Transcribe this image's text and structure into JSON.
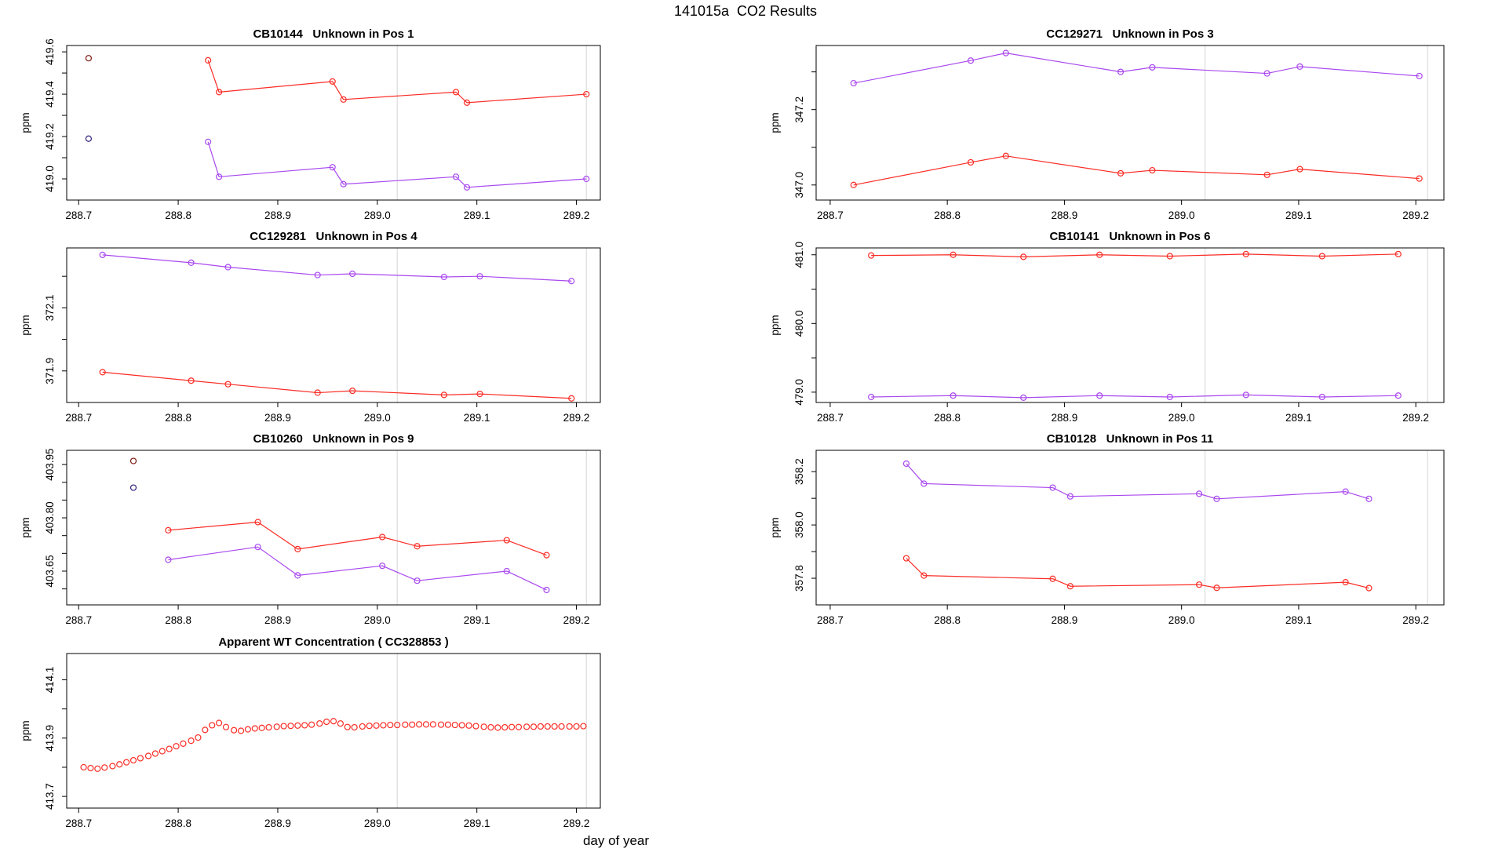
{
  "page": {
    "title": "141015a  CO2 Results",
    "xlabel": "day of year"
  },
  "colors": {
    "red": "#fa2c25",
    "purple": "#a948ef",
    "dark_red": "#7c1a10",
    "dark_purple": "#2f2380",
    "grid": "#dcdcdc",
    "axis": "#000000"
  },
  "chart_data": [
    {
      "type": "line",
      "title": "CB10144   Unknown in Pos 1",
      "ylabel": "ppm",
      "xlim": [
        288.688,
        289.224
      ],
      "ylim": [
        418.9,
        419.63
      ],
      "xticks": {
        "values": [
          288.7,
          288.8,
          288.9,
          289.0,
          289.1,
          289.2
        ],
        "labels": [
          "288.7",
          "288.8",
          "288.9",
          "289.0",
          "289.1",
          "289.2"
        ]
      },
      "yticks": {
        "values": [
          419.0,
          419.1,
          419.2,
          419.3,
          419.4,
          419.5,
          419.6
        ],
        "labels": [
          "419.0",
          "",
          "419.2",
          "",
          "419.4",
          "",
          "419.6"
        ]
      },
      "vlines": [
        289.02,
        289.21
      ],
      "grid": "vlines-only",
      "legend": "none",
      "series": [
        {
          "name": "red-series",
          "color": "red",
          "draw_line": true,
          "line_from": 1,
          "first_point_color": "dark_red",
          "x": [
            288.71,
            288.83,
            288.841,
            288.955,
            288.966,
            289.079,
            289.09,
            289.21
          ],
          "y": [
            419.57,
            419.56,
            419.41,
            419.46,
            419.375,
            419.41,
            419.36,
            419.4
          ]
        },
        {
          "name": "purple-series",
          "color": "purple",
          "draw_line": true,
          "line_from": 1,
          "first_point_color": "dark_purple",
          "x": [
            288.71,
            288.83,
            288.841,
            288.955,
            288.966,
            289.079,
            289.09,
            289.21
          ],
          "y": [
            419.19,
            419.175,
            419.01,
            419.055,
            418.975,
            419.01,
            418.96,
            419.0
          ]
        }
      ]
    },
    {
      "type": "line",
      "title": "CC129271   Unknown in Pos 3",
      "ylabel": "ppm",
      "xlim": [
        288.688,
        289.224
      ],
      "ylim": [
        346.96,
        347.37
      ],
      "xticks": {
        "values": [
          288.7,
          288.8,
          288.9,
          289.0,
          289.1,
          289.2
        ],
        "labels": [
          "288.7",
          "288.8",
          "288.9",
          "289.0",
          "289.1",
          "289.2"
        ]
      },
      "yticks": {
        "values": [
          347.0,
          347.1,
          347.2,
          347.3
        ],
        "labels": [
          "347.0",
          "",
          "347.2",
          ""
        ]
      },
      "vlines": [
        289.02,
        289.21
      ],
      "grid": "vlines-only",
      "legend": "none",
      "series": [
        {
          "name": "purple-series",
          "color": "purple",
          "draw_line": true,
          "x": [
            288.72,
            288.82,
            288.85,
            288.948,
            288.975,
            289.073,
            289.101,
            289.203
          ],
          "y": [
            347.27,
            347.33,
            347.35,
            347.3,
            347.312,
            347.296,
            347.314,
            347.289
          ]
        },
        {
          "name": "red-series",
          "color": "red",
          "draw_line": true,
          "x": [
            288.72,
            288.82,
            288.85,
            288.948,
            288.975,
            289.073,
            289.101,
            289.203
          ],
          "y": [
            347.0,
            347.06,
            347.077,
            347.031,
            347.039,
            347.027,
            347.042,
            347.017
          ]
        }
      ]
    },
    {
      "type": "line",
      "title": "CC129281   Unknown in Pos 4",
      "ylabel": "ppm",
      "xlim": [
        288.688,
        289.224
      ],
      "ylim": [
        371.8,
        372.29
      ],
      "xticks": {
        "values": [
          288.7,
          288.8,
          288.9,
          289.0,
          289.1,
          289.2
        ],
        "labels": [
          "288.7",
          "288.8",
          "288.9",
          "289.0",
          "289.1",
          "289.2"
        ]
      },
      "yticks": {
        "values": [
          371.9,
          372.0,
          372.1,
          372.2
        ],
        "labels": [
          "371.9",
          "",
          "372.1",
          ""
        ]
      },
      "vlines": [
        289.02,
        289.21
      ],
      "grid": "vlines-only",
      "legend": "none",
      "series": [
        {
          "name": "purple-series",
          "color": "purple",
          "draw_line": true,
          "x": [
            288.724,
            288.813,
            288.85,
            288.94,
            288.975,
            289.067,
            289.103,
            289.195
          ],
          "y": [
            372.268,
            372.243,
            372.229,
            372.204,
            372.208,
            372.198,
            372.2,
            372.185
          ]
        },
        {
          "name": "red-series",
          "color": "red",
          "draw_line": true,
          "x": [
            288.724,
            288.813,
            288.85,
            288.94,
            288.975,
            289.067,
            289.103,
            289.195
          ],
          "y": [
            371.896,
            371.869,
            371.858,
            371.831,
            371.837,
            371.824,
            371.827,
            371.813
          ]
        }
      ]
    },
    {
      "type": "line",
      "title": "CB10141   Unknown in Pos 6",
      "ylabel": "ppm",
      "xlim": [
        288.688,
        289.224
      ],
      "ylim": [
        478.85,
        481.1
      ],
      "xticks": {
        "values": [
          288.7,
          288.8,
          288.9,
          289.0,
          289.1,
          289.2
        ],
        "labels": [
          "288.7",
          "288.8",
          "288.9",
          "289.0",
          "289.1",
          "289.2"
        ]
      },
      "yticks": {
        "values": [
          479.0,
          479.5,
          480.0,
          480.5,
          481.0
        ],
        "labels": [
          "479.0",
          "",
          "480.0",
          "",
          "481.0"
        ]
      },
      "vlines": [
        289.02,
        289.21
      ],
      "grid": "vlines-only",
      "legend": "none",
      "series": [
        {
          "name": "red-series",
          "color": "red",
          "draw_line": true,
          "x": [
            288.735,
            288.805,
            288.865,
            288.93,
            288.99,
            289.055,
            289.12,
            289.185
          ],
          "y": [
            480.99,
            481.0,
            480.97,
            481.0,
            480.98,
            481.01,
            480.98,
            481.01
          ]
        },
        {
          "name": "purple-series",
          "color": "purple",
          "draw_line": true,
          "x": [
            288.735,
            288.805,
            288.865,
            288.93,
            288.99,
            289.055,
            289.12,
            289.185
          ],
          "y": [
            478.93,
            478.95,
            478.92,
            478.95,
            478.93,
            478.96,
            478.93,
            478.95
          ]
        }
      ]
    },
    {
      "type": "line",
      "title": "CB10260   Unknown in Pos 9",
      "ylabel": "ppm",
      "xlim": [
        288.688,
        289.224
      ],
      "ylim": [
        403.555,
        403.99
      ],
      "xticks": {
        "values": [
          288.7,
          288.8,
          288.9,
          289.0,
          289.1,
          289.2
        ],
        "labels": [
          "288.7",
          "288.8",
          "288.9",
          "289.0",
          "289.1",
          "289.2"
        ]
      },
      "yticks": {
        "values": [
          403.6,
          403.65,
          403.7,
          403.75,
          403.8,
          403.85,
          403.9,
          403.95
        ],
        "labels": [
          "",
          "403.65",
          "",
          "",
          "403.80",
          "",
          "",
          "403.95"
        ]
      },
      "vlines": [
        289.02,
        289.21
      ],
      "grid": "vlines-only",
      "legend": "none",
      "series": [
        {
          "name": "red-series",
          "color": "red",
          "draw_line": true,
          "line_from": 1,
          "first_point_color": "dark_red",
          "x": [
            288.755,
            288.79,
            288.88,
            288.92,
            289.005,
            289.04,
            289.13,
            289.17
          ],
          "y": [
            403.96,
            403.765,
            403.788,
            403.712,
            403.746,
            403.72,
            403.737,
            403.695
          ]
        },
        {
          "name": "purple-series",
          "color": "purple",
          "draw_line": true,
          "line_from": 1,
          "first_point_color": "dark_purple",
          "x": [
            288.755,
            288.79,
            288.88,
            288.92,
            289.005,
            289.04,
            289.13,
            289.17
          ],
          "y": [
            403.885,
            403.682,
            403.718,
            403.638,
            403.665,
            403.623,
            403.65,
            403.597
          ]
        }
      ]
    },
    {
      "type": "line",
      "title": "CB10128   Unknown in Pos 11",
      "ylabel": "ppm",
      "xlim": [
        288.688,
        289.224
      ],
      "ylim": [
        357.7,
        358.28
      ],
      "xticks": {
        "values": [
          288.7,
          288.8,
          288.9,
          289.0,
          289.1,
          289.2
        ],
        "labels": [
          "288.7",
          "288.8",
          "288.9",
          "289.0",
          "289.1",
          "289.2"
        ]
      },
      "yticks": {
        "values": [
          357.8,
          357.9,
          358.0,
          358.1,
          358.2
        ],
        "labels": [
          "357.8",
          "",
          "358.0",
          "",
          "358.2"
        ]
      },
      "vlines": [
        289.02,
        289.21
      ],
      "grid": "vlines-only",
      "legend": "none",
      "series": [
        {
          "name": "purple-series",
          "color": "purple",
          "draw_line": true,
          "x": [
            288.765,
            288.78,
            288.89,
            288.905,
            289.015,
            289.03,
            289.14,
            289.16
          ],
          "y": [
            358.23,
            358.155,
            358.14,
            358.107,
            358.117,
            358.098,
            358.125,
            358.098
          ]
        },
        {
          "name": "red-series",
          "color": "red",
          "draw_line": true,
          "x": [
            288.765,
            288.78,
            288.89,
            288.905,
            289.015,
            289.03,
            289.14,
            289.16
          ],
          "y": [
            357.875,
            357.81,
            357.798,
            357.77,
            357.776,
            357.764,
            357.785,
            357.763
          ]
        }
      ]
    },
    {
      "type": "scatter",
      "title": "Apparent WT Concentration ( CC328853 )",
      "ylabel": "ppm",
      "xlim": [
        288.688,
        289.224
      ],
      "ylim": [
        413.66,
        414.19
      ],
      "xticks": {
        "values": [
          288.7,
          288.8,
          288.9,
          289.0,
          289.1,
          289.2
        ],
        "labels": [
          "288.7",
          "288.8",
          "288.9",
          "289.0",
          "289.1",
          "289.2"
        ]
      },
      "yticks": {
        "values": [
          413.7,
          413.8,
          413.9,
          414.0,
          414.1
        ],
        "labels": [
          "413.7",
          "",
          "413.9",
          "",
          "414.1"
        ]
      },
      "vlines": [
        289.02,
        289.21
      ],
      "grid": "vlines-only",
      "legend": "none",
      "series": [
        {
          "name": "red-series",
          "color": "red",
          "draw_line": false,
          "x": [
            288.705,
            288.712,
            288.719,
            288.726,
            288.734,
            288.741,
            288.748,
            288.755,
            288.762,
            288.77,
            288.777,
            288.784,
            288.791,
            288.798,
            288.805,
            288.813,
            288.82,
            288.827,
            288.834,
            288.841,
            288.848,
            288.856,
            288.863,
            288.87,
            288.877,
            288.884,
            288.891,
            288.899,
            288.906,
            288.913,
            288.92,
            288.927,
            288.934,
            288.942,
            288.949,
            288.956,
            288.963,
            288.97,
            288.977,
            288.985,
            288.992,
            288.999,
            289.006,
            289.013,
            289.02,
            289.028,
            289.035,
            289.042,
            289.049,
            289.056,
            289.064,
            289.071,
            289.078,
            289.085,
            289.092,
            289.099,
            289.107,
            289.114,
            289.121,
            289.128,
            289.135,
            289.142,
            289.15,
            289.157,
            289.164,
            289.171,
            289.178,
            289.185,
            289.193,
            289.2,
            289.207
          ],
          "y": [
            413.8,
            413.797,
            413.795,
            413.799,
            413.804,
            413.81,
            413.817,
            413.824,
            413.831,
            413.839,
            413.847,
            413.855,
            413.863,
            413.872,
            413.881,
            413.891,
            413.902,
            413.928,
            413.944,
            413.952,
            413.938,
            413.927,
            413.925,
            413.93,
            413.933,
            413.935,
            413.937,
            413.939,
            413.941,
            413.942,
            413.943,
            413.944,
            413.946,
            413.95,
            413.956,
            413.958,
            413.95,
            413.938,
            413.937,
            413.94,
            413.942,
            413.943,
            413.944,
            413.945,
            413.945,
            413.946,
            413.946,
            413.947,
            413.947,
            413.947,
            413.946,
            413.946,
            413.945,
            413.944,
            413.943,
            413.941,
            413.939,
            413.937,
            413.936,
            413.937,
            413.938,
            413.938,
            413.939,
            413.939,
            413.94,
            413.94,
            413.94,
            413.94,
            413.94,
            413.94,
            413.941
          ]
        }
      ]
    }
  ]
}
